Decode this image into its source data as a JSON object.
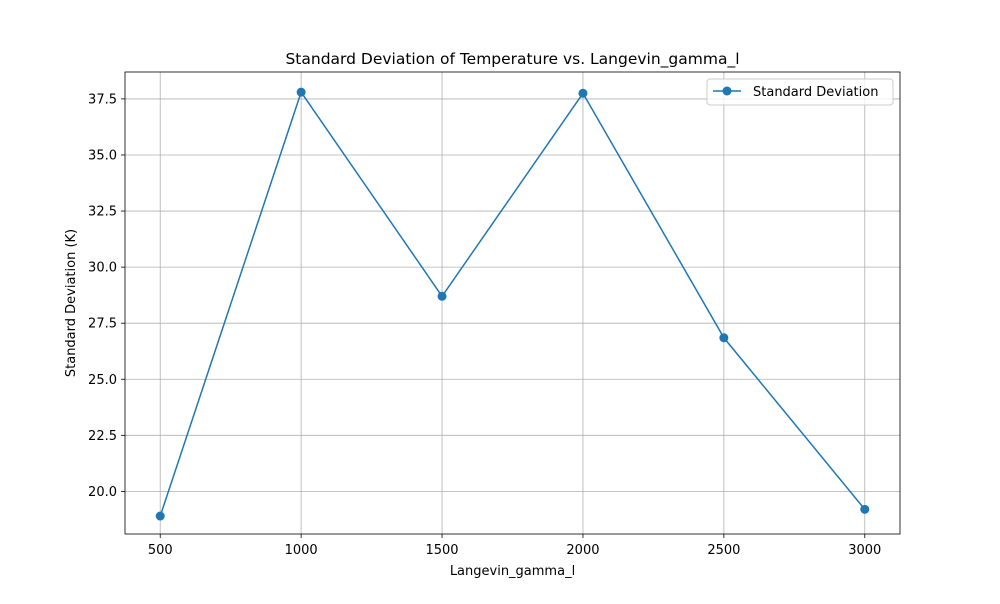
{
  "chart_data": {
    "type": "line",
    "title": "Standard Deviation of Temperature vs. Langevin_gamma_l",
    "xlabel": "Langevin_gamma_l",
    "ylabel": "Standard Deviation (K)",
    "xlim": [
      375,
      3125
    ],
    "ylim": [
      18.1,
      38.7
    ],
    "xticks": [
      500,
      1000,
      1500,
      2000,
      2500,
      3000
    ],
    "xtick_labels": [
      "500",
      "1000",
      "1500",
      "2000",
      "2500",
      "3000"
    ],
    "yticks": [
      20.0,
      22.5,
      25.0,
      27.5,
      30.0,
      32.5,
      35.0,
      37.5
    ],
    "ytick_labels": [
      "20.0",
      "22.5",
      "25.0",
      "27.5",
      "30.0",
      "32.5",
      "35.0",
      "37.5"
    ],
    "grid": true,
    "legend_position": "top-right",
    "series": [
      {
        "name": "Standard Deviation",
        "color": "#1f77b4",
        "marker": "circle",
        "x": [
          500,
          1000,
          1500,
          2000,
          2500,
          3000
        ],
        "y": [
          18.9,
          37.8,
          28.7,
          37.75,
          26.85,
          19.2
        ]
      }
    ]
  }
}
